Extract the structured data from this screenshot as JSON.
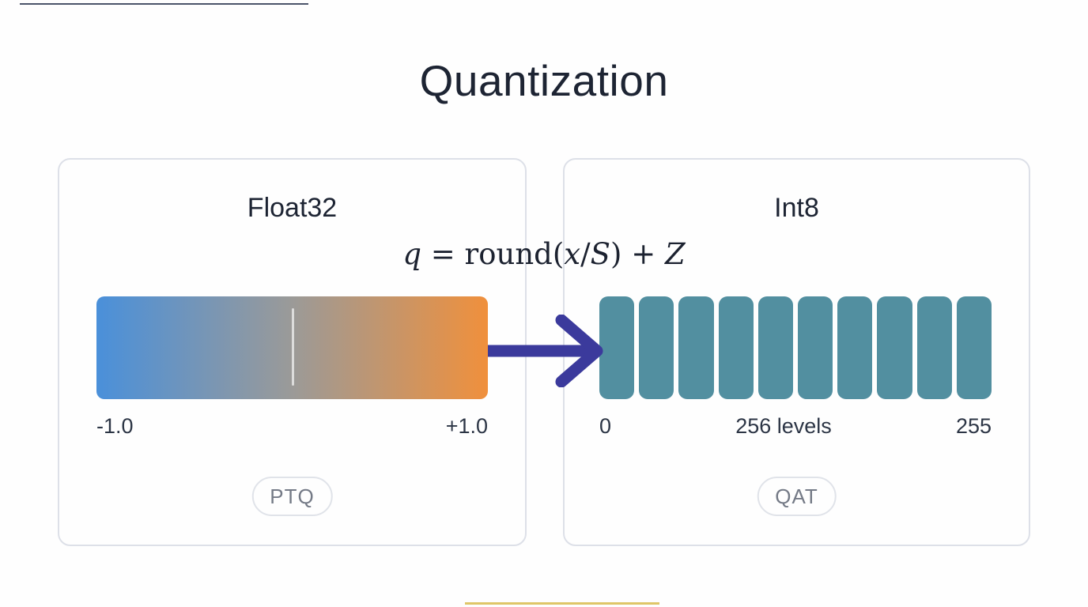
{
  "title": "Quantization",
  "formula": {
    "text": "q = round(x/S) + Z",
    "parts": [
      {
        "text": "q",
        "style": "italic"
      },
      {
        "text": " = round(",
        "style": "roman"
      },
      {
        "text": "x",
        "style": "italic"
      },
      {
        "text": "/",
        "style": "roman"
      },
      {
        "text": "S",
        "style": "italic"
      },
      {
        "text": ") + ",
        "style": "roman"
      },
      {
        "text": "Z",
        "style": "italic"
      }
    ]
  },
  "float32_panel": {
    "title": "Float32",
    "range_min": "-1.0",
    "range_max": "+1.0",
    "badge": "PTQ"
  },
  "int8_panel": {
    "title": "Int8",
    "block_count": 10,
    "label_min": "0",
    "label_mid": "256 levels",
    "label_max": "255",
    "badge": "QAT"
  },
  "colors": {
    "background": "#fefefe",
    "title_text": "#1d2433",
    "label_text": "#2c3545",
    "panel_border": "#dde0e8",
    "gradient_start": "#4a90da",
    "gradient_mid": "#9b9a98",
    "gradient_end": "#f0903c",
    "center_tick": "rgba(255,255,255,0.65)",
    "block_teal": "#528fa0",
    "arrow_indigo": "#3b3a9c",
    "badge_border": "#e0e3e9",
    "badge_text": "#747a86",
    "edge_top": "#2c3650",
    "edge_bottom": "#d9bc4e"
  }
}
